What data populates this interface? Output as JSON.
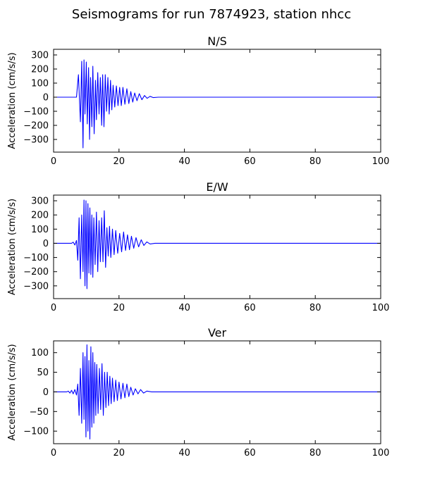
{
  "figure": {
    "title": "Seismograms for run 7874923, station nhcc"
  },
  "colors": {
    "trace": "#0000ff",
    "axes": "#000000",
    "background": "#ffffff"
  },
  "chart_data": [
    {
      "type": "line",
      "title": "N/S",
      "xlabel": "",
      "ylabel": "Acceleration (cm/s/s)",
      "xlim": [
        0,
        100
      ],
      "ylim": [
        -390,
        340
      ],
      "xticks": [
        0,
        20,
        40,
        60,
        80,
        100
      ],
      "yticks": [
        -300,
        -200,
        -100,
        0,
        100,
        200,
        300
      ],
      "grid": false,
      "series": [
        {
          "color": "#0000ff",
          "x": [
            0,
            7,
            7.6,
            8.2,
            8.6,
            9.0,
            9.3,
            9.6,
            10.0,
            10.3,
            10.7,
            11.0,
            11.3,
            11.7,
            12.0,
            12.4,
            12.8,
            13.1,
            13.5,
            13.9,
            14.3,
            14.7,
            15.0,
            15.4,
            15.8,
            16.2,
            16.6,
            17.0,
            17.4,
            17.8,
            18.2,
            18.7,
            19.2,
            19.7,
            20.2,
            20.7,
            21.2,
            21.8,
            22.4,
            23.0,
            23.6,
            24.2,
            24.8,
            25.5,
            26.2,
            27.0,
            27.8,
            28.6,
            29.5,
            30.5,
            32,
            100
          ],
          "y": [
            0,
            0,
            160,
            -175,
            255,
            -360,
            265,
            -120,
            250,
            -190,
            210,
            -300,
            140,
            -210,
            220,
            -260,
            120,
            -160,
            175,
            -120,
            140,
            -200,
            160,
            -210,
            160,
            -100,
            140,
            -120,
            120,
            -90,
            85,
            -70,
            80,
            -60,
            70,
            -60,
            70,
            -50,
            60,
            -45,
            40,
            -35,
            30,
            -25,
            25,
            -18,
            12,
            -8,
            6,
            -3,
            0,
            0
          ]
        }
      ]
    },
    {
      "type": "line",
      "title": "E/W",
      "xlabel": "",
      "ylabel": "Acceleration (cm/s/s)",
      "xlim": [
        0,
        100
      ],
      "ylim": [
        -390,
        340
      ],
      "xticks": [
        0,
        20,
        40,
        60,
        80,
        100
      ],
      "yticks": [
        -300,
        -200,
        -100,
        0,
        100,
        200,
        300
      ],
      "grid": false,
      "series": [
        {
          "color": "#0000ff",
          "x": [
            0,
            5.5,
            6.0,
            6.5,
            7.0,
            7.4,
            7.8,
            8.2,
            8.6,
            9.0,
            9.3,
            9.6,
            9.9,
            10.2,
            10.5,
            10.8,
            11.1,
            11.4,
            11.7,
            12.0,
            12.3,
            12.7,
            13.1,
            13.5,
            13.9,
            14.3,
            14.7,
            15.1,
            15.5,
            15.9,
            16.3,
            16.7,
            17.1,
            17.5,
            18.0,
            18.5,
            19.0,
            19.6,
            20.2,
            20.8,
            21.4,
            22.0,
            22.6,
            23.2,
            23.8,
            24.5,
            25.2,
            26.0,
            26.8,
            27.6,
            28.5,
            29.5,
            31,
            100
          ],
          "y": [
            0,
            0,
            8,
            -12,
            20,
            -120,
            180,
            -250,
            200,
            -200,
            305,
            -300,
            300,
            -320,
            280,
            -210,
            250,
            -220,
            200,
            -240,
            180,
            -150,
            220,
            -200,
            160,
            -130,
            180,
            -130,
            230,
            -170,
            110,
            -90,
            120,
            -100,
            100,
            -80,
            90,
            -70,
            70,
            -60,
            80,
            -50,
            60,
            -45,
            50,
            -35,
            40,
            -25,
            25,
            -15,
            10,
            -5,
            0,
            0
          ]
        }
      ]
    },
    {
      "type": "line",
      "title": "Ver",
      "xlabel": "",
      "ylabel": "Acceleration (cm/s/s)",
      "xlim": [
        0,
        100
      ],
      "ylim": [
        -132,
        130
      ],
      "xticks": [
        0,
        20,
        40,
        60,
        80,
        100
      ],
      "yticks": [
        -100,
        -50,
        0,
        50,
        100
      ],
      "grid": false,
      "series": [
        {
          "color": "#0000ff",
          "x": [
            0,
            4.0,
            4.5,
            5.0,
            5.5,
            6.0,
            6.5,
            7.0,
            7.4,
            7.8,
            8.2,
            8.6,
            9.0,
            9.3,
            9.6,
            9.9,
            10.2,
            10.5,
            10.8,
            11.1,
            11.4,
            11.7,
            12.0,
            12.3,
            12.6,
            12.9,
            13.2,
            13.6,
            14.0,
            14.4,
            14.8,
            15.2,
            15.6,
            16.0,
            16.4,
            16.8,
            17.2,
            17.6,
            18.0,
            18.5,
            19.0,
            19.5,
            20.0,
            20.6,
            21.2,
            21.8,
            22.4,
            23.0,
            23.6,
            24.3,
            25.0,
            25.8,
            26.6,
            27.5,
            28.5,
            30,
            100
          ],
          "y": [
            0,
            0,
            2,
            -3,
            4,
            -5,
            6,
            -8,
            20,
            -60,
            60,
            -80,
            100,
            -70,
            90,
            -115,
            120,
            -100,
            80,
            -120,
            115,
            -90,
            100,
            -80,
            75,
            -60,
            70,
            -55,
            60,
            -45,
            72,
            -60,
            50,
            -40,
            50,
            -35,
            40,
            -30,
            35,
            -25,
            30,
            -22,
            25,
            -18,
            22,
            -15,
            20,
            -12,
            12,
            -8,
            8,
            -5,
            6,
            -3,
            2,
            0,
            0
          ]
        }
      ]
    }
  ]
}
